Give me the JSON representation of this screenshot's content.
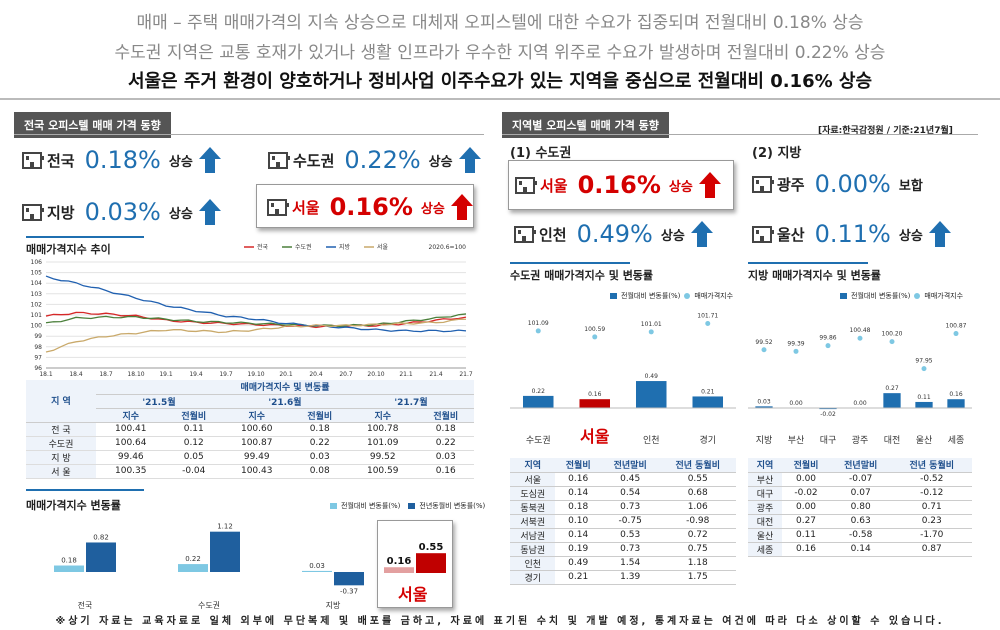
{
  "headline": {
    "line1": "매매 – 주택 매매가격의 지속 상승으로 대체재 오피스텔에 대한 수요가 집중되며 전월대비 0.18% 상승",
    "line2": "수도권 지역은 교통 호재가 있거나 생활 인프라가 우수한 지역 위주로 수요가 발생하며 전월대비 0.22% 상승",
    "line3": "서울은 주거 환경이 양호하거나 정비사업 이주수요가 있는 지역을 중심으로 전월대비 0.16% 상승"
  },
  "left_section": {
    "title": "전국 오피스텔 매매 가격 동향",
    "stats": [
      {
        "name": "전국",
        "value": "0.18%",
        "unit": "상승"
      },
      {
        "name": "수도권",
        "value": "0.22%",
        "unit": "상승"
      },
      {
        "name": "지방",
        "value": "0.03%",
        "unit": "상승"
      },
      {
        "name": "서울",
        "value": "0.16%",
        "unit": "상승"
      }
    ]
  },
  "right_section": {
    "title": "지역별 오피스텔 매매 가격 동향",
    "source": "[자료:한국감정원 / 기준:21년7월]",
    "capital_title": "(1) 수도권",
    "local_title": "(2) 지방",
    "stats": [
      {
        "name": "서울",
        "value": "0.16%",
        "unit": "상승"
      },
      {
        "name": "인천",
        "value": "0.49%",
        "unit": "상승"
      },
      {
        "name": "광주",
        "value": "0.00%",
        "unit": "보합"
      },
      {
        "name": "울산",
        "value": "0.11%",
        "unit": "상승"
      }
    ]
  },
  "seoul_label": "서울",
  "footer": "※상기 자료는 교육자료로 일체 외부에 무단복제 및 배포를 금하고, 자료에 표기된 수치 및 개발 예정, 통계자료는 여건에 따라 다소 상이할 수 있습니다.",
  "table1": {
    "region_header": "지 역",
    "group_header": "매매가격지수 및 변동률",
    "months": [
      "'21.5월",
      "'21.6월",
      "'21.7월"
    ],
    "sub": [
      "지수",
      "전월비"
    ],
    "rows": [
      {
        "region": "전 국",
        "v": [
          "100.41",
          "0.11",
          "100.60",
          "0.18",
          "100.78",
          "0.18"
        ]
      },
      {
        "region": "수도권",
        "v": [
          "100.64",
          "0.12",
          "100.87",
          "0.22",
          "101.09",
          "0.22"
        ]
      },
      {
        "region": "지 방",
        "v": [
          "99.46",
          "0.05",
          "99.49",
          "0.03",
          "99.52",
          "0.03"
        ]
      },
      {
        "region": "서 울",
        "v": [
          "100.35",
          "-0.04",
          "100.43",
          "0.08",
          "100.59",
          "0.16"
        ]
      }
    ]
  },
  "table2": {
    "headers": [
      "지역",
      "전월비",
      "전년말비",
      "전년 동월비"
    ],
    "rows": [
      [
        "서울",
        "0.16",
        "0.45",
        "0.55"
      ],
      [
        "도심권",
        "0.14",
        "0.54",
        "0.68"
      ],
      [
        "동북권",
        "0.18",
        "0.73",
        "1.06"
      ],
      [
        "서북권",
        "0.10",
        "-0.75",
        "-0.98"
      ],
      [
        "서남권",
        "0.14",
        "0.53",
        "0.72"
      ],
      [
        "동남권",
        "0.19",
        "0.73",
        "0.75"
      ],
      [
        "인천",
        "0.49",
        "1.54",
        "1.18"
      ],
      [
        "경기",
        "0.21",
        "1.39",
        "1.75"
      ]
    ]
  },
  "table3": {
    "headers": [
      "지역",
      "전월비",
      "전년말비",
      "전년 동월비"
    ],
    "rows": [
      [
        "부산",
        "0.00",
        "-0.07",
        "-0.52"
      ],
      [
        "대구",
        "-0.02",
        "0.07",
        "-0.12"
      ],
      [
        "광주",
        "0.00",
        "0.80",
        "0.71"
      ],
      [
        "대전",
        "0.27",
        "0.63",
        "0.23"
      ],
      [
        "울산",
        "0.11",
        "-0.58",
        "-1.70"
      ],
      [
        "세종",
        "0.16",
        "0.14",
        "0.87"
      ]
    ]
  },
  "chart_data": [
    {
      "type": "line",
      "title": "매매가격지수 추이",
      "note": "2020.6=100",
      "x": [
        "18.1",
        "18.4",
        "18.7",
        "18.10",
        "19.1",
        "19.4",
        "19.7",
        "19.10",
        "20.1",
        "20.4",
        "20.7",
        "20.10",
        "21.1",
        "21.4",
        "21.7"
      ],
      "ylim": [
        96,
        106
      ],
      "yticks": [
        96,
        97,
        98,
        99,
        100,
        101,
        102,
        103,
        104,
        105,
        106
      ],
      "series": [
        {
          "name": "전국",
          "color": "#d62828",
          "values": [
            100.9,
            101.2,
            101.1,
            100.9,
            100.5,
            100.3,
            100.2,
            100.1,
            100.0,
            99.9,
            100.0,
            100.0,
            100.2,
            100.5,
            100.8
          ]
        },
        {
          "name": "수도권",
          "color": "#4a7f3a",
          "values": [
            100.2,
            100.7,
            100.8,
            100.8,
            100.6,
            100.4,
            100.3,
            100.2,
            100.1,
            100.0,
            100.0,
            100.1,
            100.4,
            100.7,
            101.1
          ]
        },
        {
          "name": "지방",
          "color": "#2060b0",
          "values": [
            104.6,
            104.0,
            103.3,
            102.6,
            101.9,
            101.4,
            100.9,
            100.6,
            100.2,
            100.0,
            99.8,
            99.6,
            99.5,
            99.5,
            99.5
          ]
        },
        {
          "name": "서울",
          "color": "#c9a96a",
          "values": [
            97.5,
            98.5,
            99.0,
            99.3,
            99.6,
            99.5,
            99.4,
            99.6,
            99.9,
            100.0,
            100.0,
            100.1,
            100.2,
            100.3,
            100.6
          ]
        }
      ]
    },
    {
      "type": "bar",
      "title": "매매가격지수 변동률",
      "categories": [
        "전국",
        "수도권",
        "지방",
        "서울"
      ],
      "series": [
        {
          "name": "전월대비 변동률(%)",
          "color": "#7ec8e3",
          "values": [
            0.18,
            0.22,
            0.03,
            0.16
          ]
        },
        {
          "name": "전년동월비 변동률(%)",
          "color": "#1f5f9e",
          "values": [
            0.82,
            1.12,
            -0.37,
            0.55
          ]
        }
      ]
    },
    {
      "type": "bar",
      "title": "수도권 매매가격지수 및 변동률",
      "categories": [
        "수도권",
        "서울",
        "인천",
        "경기"
      ],
      "series": [
        {
          "name": "전월대비 변동률(%)",
          "color": "#1f6fb0",
          "values": [
            0.22,
            0.16,
            0.49,
            0.21
          ]
        },
        {
          "name": "매매가격지수",
          "color": "#7ec8e3",
          "values": [
            101.09,
            100.59,
            101.01,
            101.71
          ]
        }
      ]
    },
    {
      "type": "bar",
      "title": "지방 매매가격지수 및 변동률",
      "categories": [
        "지방",
        "부산",
        "대구",
        "광주",
        "대전",
        "울산",
        "세종"
      ],
      "series": [
        {
          "name": "전월대비 변동률(%)",
          "color": "#1f6fb0",
          "values": [
            0.03,
            0.0,
            -0.02,
            0.0,
            0.27,
            0.11,
            0.16
          ]
        },
        {
          "name": "매매가격지수",
          "color": "#7ec8e3",
          "values": [
            99.52,
            99.39,
            99.86,
            100.48,
            100.2,
            97.95,
            100.87
          ]
        }
      ]
    }
  ]
}
